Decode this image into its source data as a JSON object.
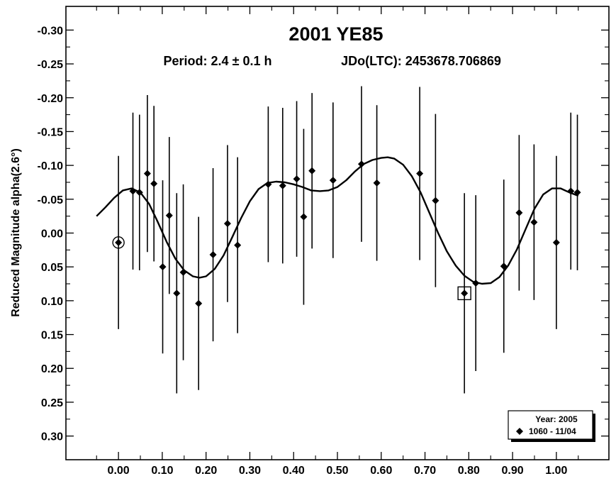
{
  "chart_data": {
    "type": "scatter",
    "title": "2001 YE85",
    "subtitle_period": "Period: 2.4 ± 0.1 h",
    "subtitle_epoch": "JDo(LTC): 2453678.706869",
    "xlabel": "",
    "ylabel": "Reduced Magnitude alpha(2.6°)",
    "xlim": [
      -0.12,
      1.12
    ],
    "ylim": [
      0.335,
      -0.335
    ],
    "y_inverted": true,
    "x_ticks": [
      0.0,
      0.1,
      0.2,
      0.3,
      0.4,
      0.5,
      0.6,
      0.7,
      0.8,
      0.9,
      1.0
    ],
    "x_tick_labels": [
      "0.00",
      "0.10",
      "0.20",
      "0.30",
      "0.40",
      "0.50",
      "0.60",
      "0.70",
      "0.80",
      "0.90",
      "1.00"
    ],
    "y_ticks": [
      -0.3,
      -0.25,
      -0.2,
      -0.15,
      -0.1,
      -0.05,
      0.0,
      0.05,
      0.1,
      0.15,
      0.2,
      0.25,
      0.3
    ],
    "y_tick_labels": [
      "-0.30",
      "-0.25",
      "-0.20",
      "-0.15",
      "-0.10",
      "-0.05",
      "0.00",
      "0.05",
      "0.10",
      "0.15",
      "0.20",
      "0.25",
      "0.30"
    ],
    "legend": {
      "placement": "bottom-right",
      "title": "Year: 2005",
      "entries": [
        {
          "marker": "diamond",
          "label": "1060 - 11/04"
        }
      ]
    },
    "series": [
      {
        "name": "1060 - 11/04",
        "marker": "diamond",
        "points": [
          {
            "x": 0.0,
            "y": 0.014,
            "err": 0.128,
            "marker": "circle"
          },
          {
            "x": 0.033,
            "y": -0.062,
            "err": 0.116
          },
          {
            "x": 0.048,
            "y": -0.06,
            "err": 0.115
          },
          {
            "x": 0.066,
            "y": -0.088,
            "err": 0.116
          },
          {
            "x": 0.081,
            "y": -0.073,
            "err": 0.115
          },
          {
            "x": 0.101,
            "y": 0.05,
            "err": 0.128
          },
          {
            "x": 0.116,
            "y": -0.026,
            "err": 0.116
          },
          {
            "x": 0.133,
            "y": 0.089,
            "err": 0.148
          },
          {
            "x": 0.148,
            "y": 0.058,
            "err": 0.13
          },
          {
            "x": 0.183,
            "y": 0.104,
            "err": 0.128
          },
          {
            "x": 0.216,
            "y": 0.032,
            "err": 0.128
          },
          {
            "x": 0.249,
            "y": -0.014,
            "err": 0.116
          },
          {
            "x": 0.272,
            "y": 0.018,
            "err": 0.13
          },
          {
            "x": 0.342,
            "y": -0.072,
            "err": 0.115
          },
          {
            "x": 0.375,
            "y": -0.07,
            "err": 0.115
          },
          {
            "x": 0.407,
            "y": -0.08,
            "err": 0.115
          },
          {
            "x": 0.423,
            "y": -0.024,
            "err": 0.13
          },
          {
            "x": 0.442,
            "y": -0.092,
            "err": 0.115
          },
          {
            "x": 0.49,
            "y": -0.078,
            "err": 0.115
          },
          {
            "x": 0.555,
            "y": -0.102,
            "err": 0.115
          },
          {
            "x": 0.59,
            "y": -0.074,
            "err": 0.115
          },
          {
            "x": 0.688,
            "y": -0.088,
            "err": 0.128
          },
          {
            "x": 0.724,
            "y": -0.048,
            "err": 0.128
          },
          {
            "x": 0.79,
            "y": 0.089,
            "err": 0.148,
            "marker": "square"
          },
          {
            "x": 0.816,
            "y": 0.074,
            "err": 0.13
          },
          {
            "x": 0.88,
            "y": 0.049,
            "err": 0.128
          },
          {
            "x": 0.915,
            "y": -0.03,
            "err": 0.115
          },
          {
            "x": 0.949,
            "y": -0.016,
            "err": 0.115
          },
          {
            "x": 1.0,
            "y": 0.014,
            "err": 0.128
          },
          {
            "x": 1.033,
            "y": -0.062,
            "err": 0.116
          },
          {
            "x": 1.048,
            "y": -0.06,
            "err": 0.115
          }
        ]
      },
      {
        "name": "Fourier fit",
        "type": "line",
        "x": [
          -0.05,
          -0.03,
          -0.01,
          0.01,
          0.03,
          0.05,
          0.07,
          0.09,
          0.11,
          0.13,
          0.15,
          0.17,
          0.185,
          0.2,
          0.22,
          0.24,
          0.26,
          0.28,
          0.3,
          0.32,
          0.34,
          0.36,
          0.38,
          0.4,
          0.42,
          0.44,
          0.46,
          0.48,
          0.5,
          0.52,
          0.54,
          0.56,
          0.58,
          0.6,
          0.615,
          0.63,
          0.65,
          0.67,
          0.69,
          0.71,
          0.73,
          0.75,
          0.77,
          0.79,
          0.81,
          0.83,
          0.85,
          0.87,
          0.89,
          0.91,
          0.93,
          0.95,
          0.97,
          0.99,
          1.01,
          1.03,
          1.05
        ],
        "y": [
          -0.025,
          -0.038,
          -0.052,
          -0.063,
          -0.066,
          -0.06,
          -0.043,
          -0.016,
          0.013,
          0.038,
          0.055,
          0.064,
          0.066,
          0.064,
          0.053,
          0.033,
          0.006,
          -0.022,
          -0.047,
          -0.065,
          -0.074,
          -0.076,
          -0.075,
          -0.072,
          -0.068,
          -0.063,
          -0.062,
          -0.063,
          -0.068,
          -0.078,
          -0.091,
          -0.102,
          -0.108,
          -0.111,
          -0.112,
          -0.11,
          -0.101,
          -0.084,
          -0.06,
          -0.03,
          0.0,
          0.027,
          0.048,
          0.063,
          0.072,
          0.075,
          0.074,
          0.065,
          0.048,
          0.024,
          -0.006,
          -0.036,
          -0.057,
          -0.066,
          -0.066,
          -0.06,
          -0.055
        ]
      }
    ]
  }
}
